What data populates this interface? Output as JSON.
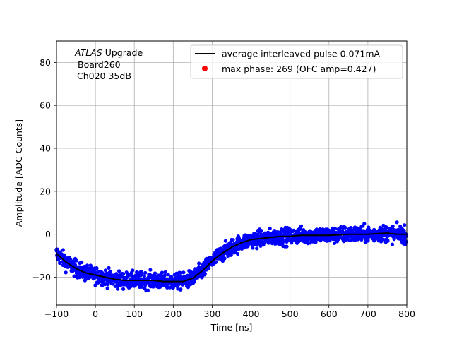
{
  "chart_data": {
    "type": "scatter",
    "xlabel": "Time [ns]",
    "ylabel": "Amplitude [ADC Counts]",
    "xlim": [
      -100,
      800
    ],
    "ylim": [
      -33,
      90
    ],
    "xticks": [
      -100,
      0,
      100,
      200,
      300,
      400,
      500,
      600,
      700,
      800
    ],
    "yticks": [
      -20,
      0,
      20,
      40,
      60,
      80
    ],
    "grid": true,
    "legend_position": "top-right",
    "annotation": {
      "experiment": "ATLAS",
      "experiment_suffix": " Upgrade",
      "line2": "Board260",
      "line3": "Ch020 35dB"
    },
    "series": [
      {
        "name": "average interleaved pulse 0.071mA",
        "kind": "line",
        "color": "#000000",
        "x": [
          -100,
          -75,
          -50,
          -25,
          0,
          25,
          50,
          75,
          100,
          125,
          150,
          175,
          200,
          225,
          250,
          275,
          300,
          325,
          350,
          375,
          400,
          425,
          450,
          475,
          500,
          525,
          550,
          575,
          600,
          625,
          650,
          675,
          700,
          725,
          750,
          775,
          800
        ],
        "y": [
          -9,
          -13,
          -16,
          -18,
          -19,
          -20,
          -21,
          -21.5,
          -21.5,
          -21.5,
          -21.5,
          -22,
          -22,
          -22,
          -20.5,
          -17,
          -12.5,
          -9,
          -6,
          -4,
          -2.5,
          -2,
          -1.5,
          -1,
          -1,
          -0.5,
          -0.5,
          -0.5,
          -0.5,
          -0.3,
          0,
          0,
          0,
          0.3,
          0.5,
          0,
          0
        ],
        "spread": 3.5
      },
      {
        "name": "max phase: 269 (OFC amp=0.427)",
        "kind": "marker",
        "color": "#ff0000"
      }
    ],
    "scatter_color": "#0000ff"
  }
}
